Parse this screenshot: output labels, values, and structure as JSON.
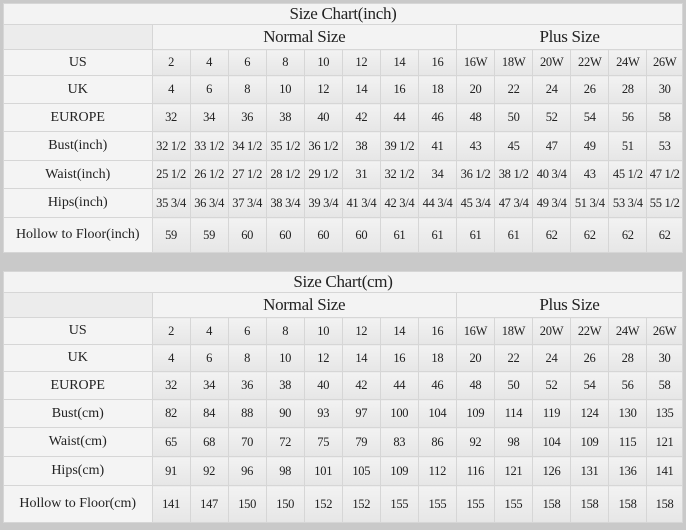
{
  "tables": [
    {
      "title": "Size Chart(inch)",
      "normal_label": "Normal Size",
      "plus_label": "Plus Size",
      "rows": [
        {
          "label": "US",
          "values": [
            "2",
            "4",
            "6",
            "8",
            "10",
            "12",
            "14",
            "16",
            "16W",
            "18W",
            "20W",
            "22W",
            "24W",
            "26W"
          ]
        },
        {
          "label": "UK",
          "values": [
            "4",
            "6",
            "8",
            "10",
            "12",
            "14",
            "16",
            "18",
            "20",
            "22",
            "24",
            "26",
            "28",
            "30"
          ]
        },
        {
          "label": "EUROPE",
          "values": [
            "32",
            "34",
            "36",
            "38",
            "40",
            "42",
            "44",
            "46",
            "48",
            "50",
            "52",
            "54",
            "56",
            "58"
          ]
        },
        {
          "label": "Bust(inch)",
          "values": [
            "32 1/2",
            "33 1/2",
            "34 1/2",
            "35 1/2",
            "36 1/2",
            "38",
            "39 1/2",
            "41",
            "43",
            "45",
            "47",
            "49",
            "51",
            "53"
          ]
        },
        {
          "label": "Waist(inch)",
          "values": [
            "25 1/2",
            "26 1/2",
            "27 1/2",
            "28 1/2",
            "29 1/2",
            "31",
            "32 1/2",
            "34",
            "36 1/2",
            "38 1/2",
            "40 3/4",
            "43",
            "45 1/2",
            "47 1/2"
          ]
        },
        {
          "label": "Hips(inch)",
          "values": [
            "35 3/4",
            "36 3/4",
            "37 3/4",
            "38 3/4",
            "39 3/4",
            "41 3/4",
            "42 3/4",
            "44 3/4",
            "45 3/4",
            "47 3/4",
            "49 3/4",
            "51 3/4",
            "53 3/4",
            "55 1/2"
          ]
        },
        {
          "label": "Hollow to Floor(inch)",
          "values": [
            "59",
            "59",
            "60",
            "60",
            "60",
            "60",
            "61",
            "61",
            "61",
            "61",
            "62",
            "62",
            "62",
            "62"
          ]
        }
      ]
    },
    {
      "title": "Size Chart(cm)",
      "normal_label": "Normal Size",
      "plus_label": "Plus Size",
      "rows": [
        {
          "label": "US",
          "values": [
            "2",
            "4",
            "6",
            "8",
            "10",
            "12",
            "14",
            "16",
            "16W",
            "18W",
            "20W",
            "22W",
            "24W",
            "26W"
          ]
        },
        {
          "label": "UK",
          "values": [
            "4",
            "6",
            "8",
            "10",
            "12",
            "14",
            "16",
            "18",
            "20",
            "22",
            "24",
            "26",
            "28",
            "30"
          ]
        },
        {
          "label": "EUROPE",
          "values": [
            "32",
            "34",
            "36",
            "38",
            "40",
            "42",
            "44",
            "46",
            "48",
            "50",
            "52",
            "54",
            "56",
            "58"
          ]
        },
        {
          "label": "Bust(cm)",
          "values": [
            "82",
            "84",
            "88",
            "90",
            "93",
            "97",
            "100",
            "104",
            "109",
            "114",
            "119",
            "124",
            "130",
            "135"
          ]
        },
        {
          "label": "Waist(cm)",
          "values": [
            "65",
            "68",
            "70",
            "72",
            "75",
            "79",
            "83",
            "86",
            "92",
            "98",
            "104",
            "109",
            "115",
            "121"
          ]
        },
        {
          "label": "Hips(cm)",
          "values": [
            "91",
            "92",
            "96",
            "98",
            "101",
            "105",
            "109",
            "112",
            "116",
            "121",
            "126",
            "131",
            "136",
            "141"
          ]
        },
        {
          "label": "Hollow to Floor(cm)",
          "values": [
            "141",
            "147",
            "150",
            "150",
            "152",
            "152",
            "155",
            "155",
            "155",
            "155",
            "158",
            "158",
            "158",
            "158"
          ]
        }
      ]
    }
  ]
}
